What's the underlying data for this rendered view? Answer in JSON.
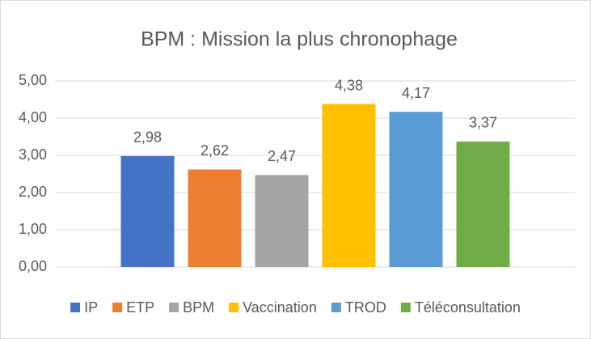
{
  "chart_data": {
    "type": "bar",
    "title": "BPM : Mission la plus chronophage",
    "series": [
      {
        "name": "IP",
        "color": "#4472c4",
        "values": [
          2.98
        ],
        "value_labels": [
          "2,98"
        ]
      },
      {
        "name": "ETP",
        "color": "#ed7d31",
        "values": [
          2.62
        ],
        "value_labels": [
          "2,62"
        ]
      },
      {
        "name": "BPM",
        "color": "#a5a5a5",
        "values": [
          2.47
        ],
        "value_labels": [
          "2,47"
        ]
      },
      {
        "name": "Vaccination",
        "color": "#ffc000",
        "values": [
          4.38
        ],
        "value_labels": [
          "4,38"
        ]
      },
      {
        "name": "TROD",
        "color": "#5b9bd5",
        "values": [
          4.17
        ],
        "value_labels": [
          "4,17"
        ]
      },
      {
        "name": "Téléconsultation",
        "color": "#70ad47",
        "values": [
          3.37
        ],
        "value_labels": [
          "3,37"
        ]
      }
    ],
    "ylim": [
      0,
      5
    ],
    "yticks": [
      {
        "value": 0,
        "label": "0,00"
      },
      {
        "value": 1,
        "label": "1,00"
      },
      {
        "value": 2,
        "label": "2,00"
      },
      {
        "value": 3,
        "label": "3,00"
      },
      {
        "value": 4,
        "label": "4,00"
      },
      {
        "value": 5,
        "label": "5,00"
      }
    ],
    "grid": true,
    "legend": "bottom"
  }
}
